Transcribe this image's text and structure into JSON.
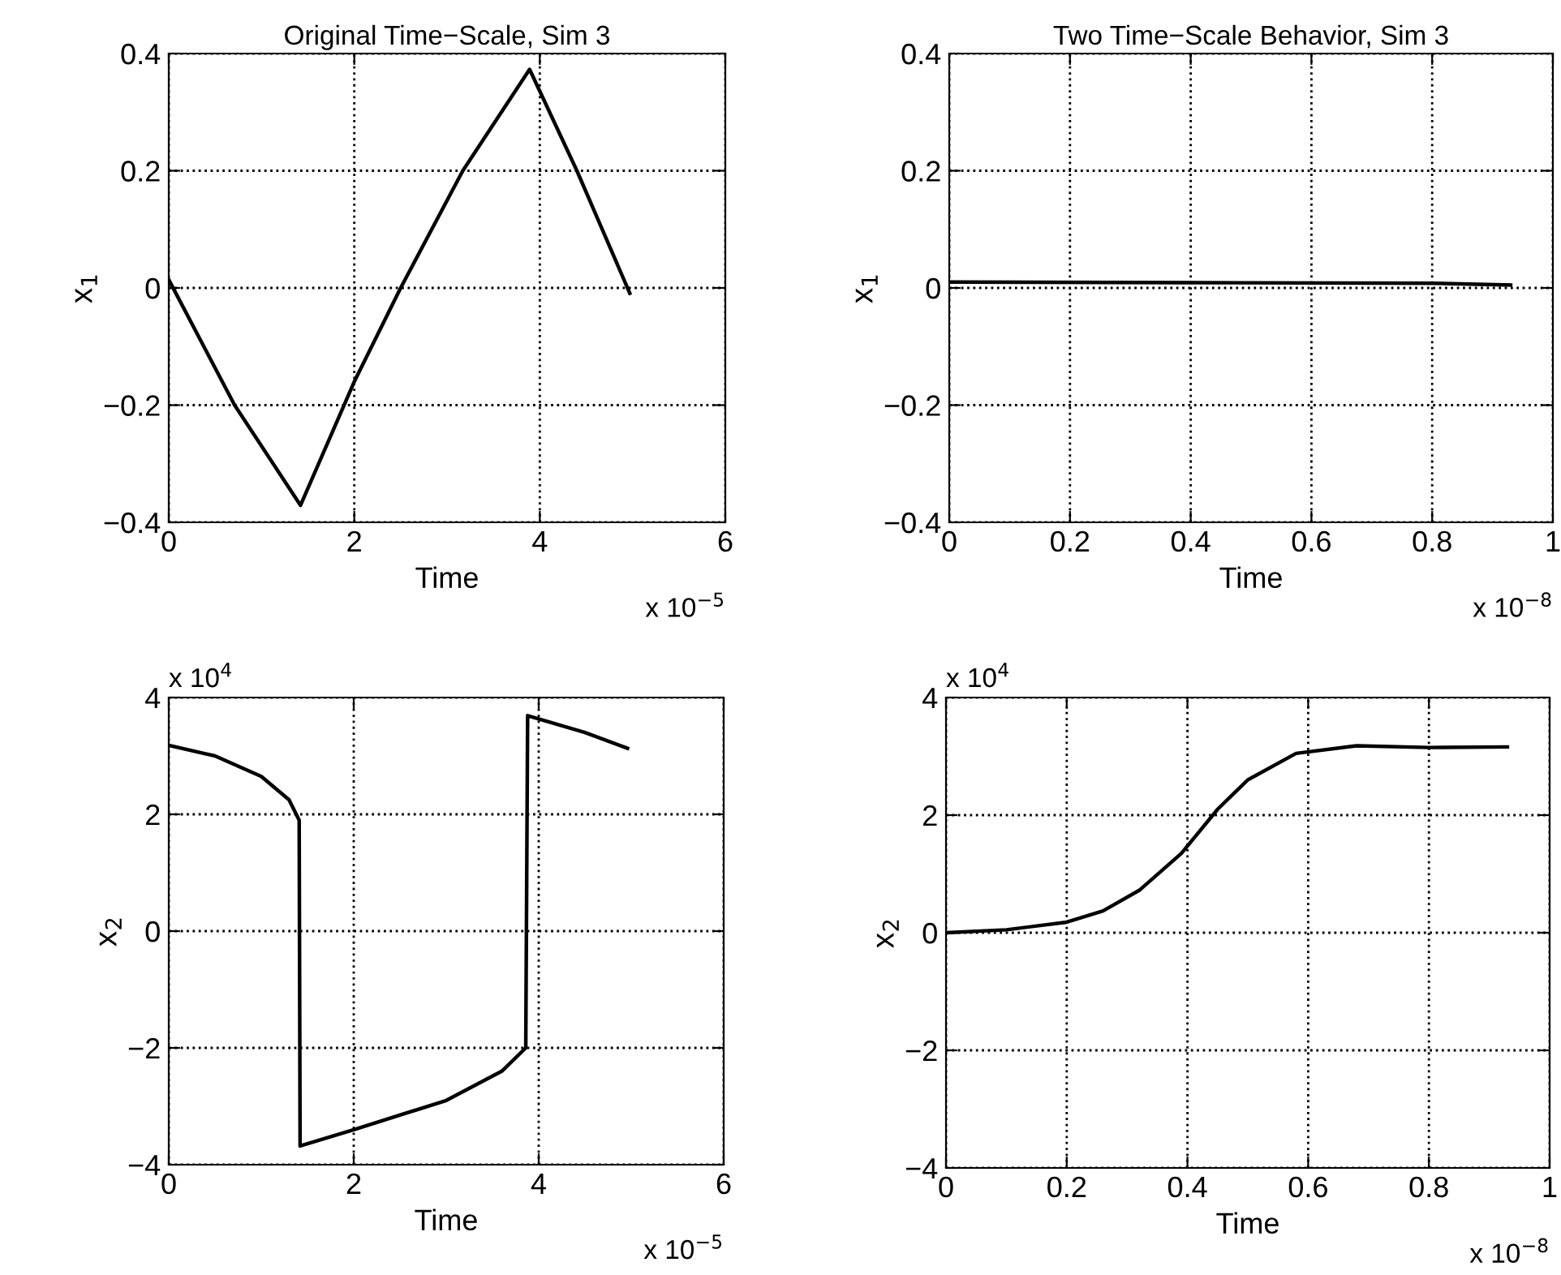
{
  "chart_data": [
    {
      "type": "line",
      "title": "Original Time−Scale, Sim 3",
      "xlabel": "Time",
      "ylabel": "x$_{1}$",
      "annotations": [
        "x 10$^{−5}$"
      ],
      "x": [
        0,
        0.71,
        1.42,
        2.0,
        2.5,
        3.17,
        3.89,
        4.4,
        4.97
      ],
      "series": [
        {
          "color": "#000000",
          "values": [
            0.014,
            -0.2,
            -0.371,
            -0.16,
            0,
            0.2,
            0.373,
            0.2,
            -0.009
          ]
        }
      ],
      "xlim": [
        0,
        6
      ],
      "xticks": [
        0,
        2,
        4,
        6
      ],
      "ylim": [
        -0.4,
        0.4
      ],
      "yticks": [
        -0.4,
        -0.2,
        0,
        0.2,
        0.4
      ],
      "grid": true,
      "line_style": "solid"
    },
    {
      "type": "line",
      "title": "Two Time−Scale Behavior, Sim 3",
      "xlabel": "Time",
      "ylabel": "x$_{1}$",
      "annotations": [
        "x 10$^{−8}$"
      ],
      "x": [
        0,
        0.4,
        0.8,
        0.93
      ],
      "series": [
        {
          "color": "#000000",
          "values": [
            0.01,
            0.009,
            0.008,
            0.005
          ]
        }
      ],
      "xlim": [
        0,
        1
      ],
      "xticks": [
        0,
        0.2,
        0.4,
        0.6,
        0.8,
        1
      ],
      "ylim": [
        -0.4,
        0.4
      ],
      "yticks": [
        -0.4,
        -0.2,
        0,
        0.2,
        0.4
      ],
      "grid": true,
      "line_style": "solid"
    },
    {
      "type": "line",
      "xlabel": "Time",
      "ylabel": "x$_{2}$",
      "annotations": [
        "x 10$^{−5}$",
        "x 10$^{4}$"
      ],
      "x": [
        0,
        0.5,
        1.0,
        1.3,
        1.41,
        1.42,
        2.0,
        3.0,
        3.6,
        3.86,
        3.88,
        4.5,
        4.96
      ],
      "series": [
        {
          "color": "#000000",
          "values": [
            3.18,
            3.0,
            2.65,
            2.25,
            1.9,
            -3.68,
            -3.4,
            -2.9,
            -2.4,
            -2.0,
            3.69,
            3.4,
            3.13
          ]
        }
      ],
      "xlim": [
        0,
        6
      ],
      "xticks": [
        0,
        2,
        4,
        6
      ],
      "ylim": [
        -4,
        4
      ],
      "yticks": [
        -4,
        -2,
        0,
        2,
        4
      ],
      "grid": true,
      "line_style": "solid"
    },
    {
      "type": "line",
      "xlabel": "Time",
      "ylabel": "x$_{2}$",
      "annotations": [
        "x 10$^{−8}$",
        "x 10$^{4}$"
      ],
      "x": [
        0,
        0.1,
        0.2,
        0.26,
        0.32,
        0.39,
        0.45,
        0.5,
        0.58,
        0.68,
        0.8,
        0.93
      ],
      "series": [
        {
          "color": "#000000",
          "values": [
            0,
            0.05,
            0.18,
            0.37,
            0.72,
            1.35,
            2.1,
            2.6,
            3.05,
            3.18,
            3.15,
            3.16
          ]
        }
      ],
      "xlim": [
        0,
        1
      ],
      "xticks": [
        0,
        0.2,
        0.4,
        0.6,
        0.8,
        1
      ],
      "ylim": [
        -4,
        4
      ],
      "yticks": [
        -4,
        -2,
        0,
        2,
        4
      ],
      "grid": true,
      "line_style": "solid"
    }
  ]
}
